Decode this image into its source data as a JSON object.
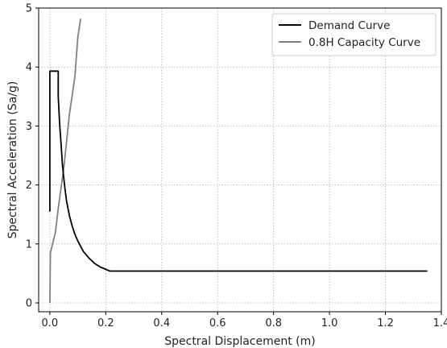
{
  "chart_data": {
    "type": "line",
    "xlabel": "Spectral Displacement (m)",
    "ylabel": "Spectral Acceleration (Sa/g)",
    "xlim": [
      -0.04,
      1.4
    ],
    "ylim": [
      -0.15,
      5.0
    ],
    "xticks": [
      0.0,
      0.2,
      0.4,
      0.6,
      0.8,
      1.0,
      1.2,
      1.4
    ],
    "xtick_labels": [
      "0.0",
      "0.2",
      "0.4",
      "0.6",
      "0.8",
      "1.0",
      "1.2",
      "1.4"
    ],
    "yticks": [
      0,
      1,
      2,
      3,
      4,
      5
    ],
    "ytick_labels": [
      "0",
      "1",
      "2",
      "3",
      "4",
      "5"
    ],
    "grid": true,
    "legend_position": "upper-right",
    "series": [
      {
        "name": "Demand Curve",
        "color": "#000000",
        "x": [
          0.0,
          0.0,
          0.03,
          0.03,
          0.035,
          0.04,
          0.045,
          0.05,
          0.055,
          0.06,
          0.07,
          0.08,
          0.09,
          0.1,
          0.12,
          0.14,
          0.16,
          0.18,
          0.2,
          0.215,
          1.35
        ],
        "y": [
          1.55,
          3.93,
          3.93,
          3.5,
          3.05,
          2.7,
          2.35,
          2.1,
          1.9,
          1.72,
          1.48,
          1.3,
          1.16,
          1.05,
          0.87,
          0.76,
          0.67,
          0.61,
          0.57,
          0.54,
          0.54
        ]
      },
      {
        "name": "0.8H Capacity Curve",
        "color": "#808080",
        "x": [
          0.0,
          0.002,
          0.02,
          0.03,
          0.05,
          0.07,
          0.09,
          0.1,
          0.11
        ],
        "y": [
          0.0,
          0.85,
          1.2,
          1.6,
          2.3,
          3.2,
          3.85,
          4.5,
          4.82
        ]
      }
    ]
  }
}
